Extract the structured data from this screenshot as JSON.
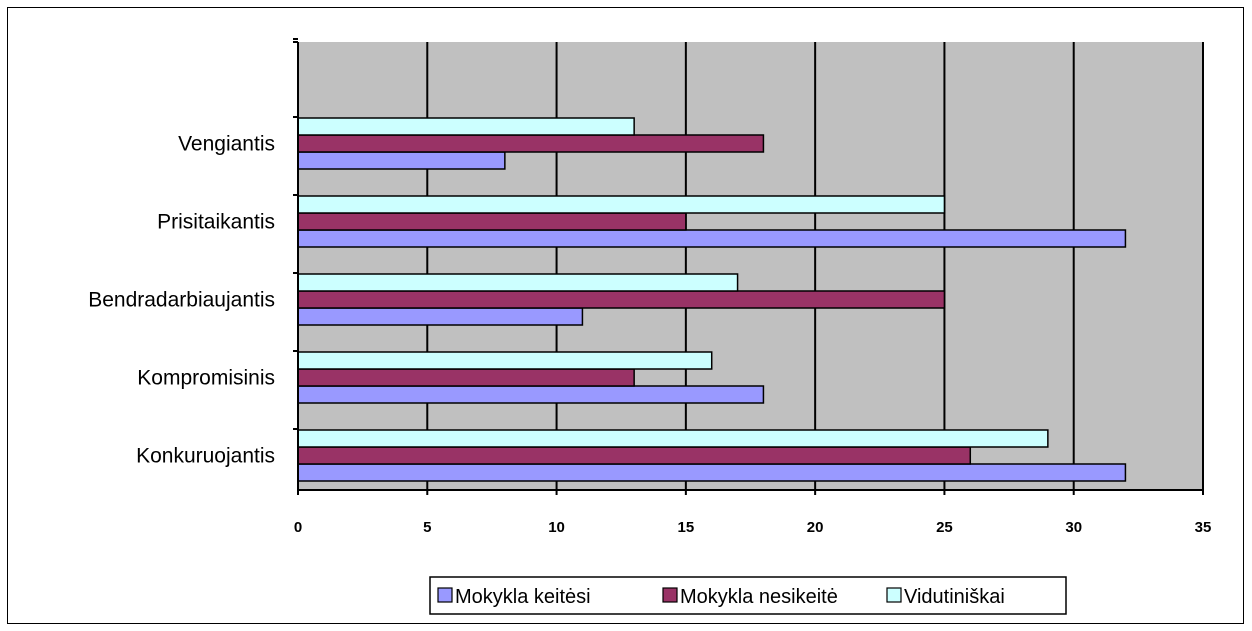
{
  "chart_data": {
    "type": "bar",
    "orientation": "horizontal",
    "categories": [
      "Konkuruojantis",
      "Kompromisinis",
      "Bendradarbiaujantis",
      "Prisitaikantis",
      "Vengiantis"
    ],
    "series": [
      {
        "name": "Mokykla keitėsi",
        "color": "#9999ff",
        "values": [
          32,
          18,
          11,
          32,
          8
        ]
      },
      {
        "name": "Mokykla nesikeitė",
        "color": "#993366",
        "values": [
          26,
          13,
          25,
          15,
          18
        ]
      },
      {
        "name": "Vidutiniškai",
        "color": "#ccffff",
        "values": [
          29,
          16,
          17,
          25,
          13
        ]
      }
    ],
    "xlim": [
      0,
      35
    ],
    "xticks": [
      "0",
      "5",
      "10",
      "15",
      "20",
      "25",
      "30",
      "35"
    ],
    "grid": "vertical",
    "plot_background": "#c0c0c0",
    "legend_position": "bottom"
  }
}
